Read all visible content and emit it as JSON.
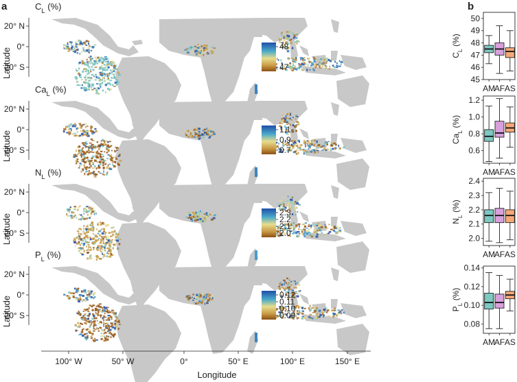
{
  "figure": {
    "panel_a_label": "a",
    "panel_b_label": "b",
    "map_ylabel": "Latitude",
    "map_xlabel": "Longitude",
    "lat_ticks": [
      "20° N",
      "0°",
      "20° S"
    ],
    "lon_ticks": [
      "100° W",
      "50° W",
      "0°",
      "50° E",
      "100° E",
      "150° E"
    ]
  },
  "colors": {
    "land": "#c8c8c8",
    "low": "#a86a28",
    "mid": "#d8c46a",
    "high": "#2c5fb0",
    "box_AM": "#7ec8c2",
    "box_AF": "#d8a0dc",
    "box_AS": "#f5a878"
  },
  "map_panels": [
    {
      "id": "C",
      "title_main": "C",
      "title_sub": "L",
      "title_unit": " (%)",
      "legend_ticks": [
        "48",
        "47"
      ]
    },
    {
      "id": "Ca",
      "title_main": "Ca",
      "title_sub": "L",
      "title_unit": " (%)",
      "legend_ticks": [
        "1.1",
        "0.9",
        "0.7"
      ]
    },
    {
      "id": "N",
      "title_main": "N",
      "title_sub": "L",
      "title_unit": " (%)",
      "legend_ticks": [
        "2.3",
        "2.2",
        "2.1",
        "2.0"
      ]
    },
    {
      "id": "P",
      "title_main": "P",
      "title_sub": "L",
      "title_unit": " (%)",
      "legend_ticks": [
        "0.12",
        "0.11",
        "0.10",
        "0.09"
      ]
    }
  ],
  "chart_data": [
    {
      "type": "box",
      "ylabel_main": "C",
      "ylabel_sub": "L",
      "ylabel_unit": " (%)",
      "ylim": [
        45,
        50.5
      ],
      "yticks": [
        "45",
        "46",
        "47",
        "48",
        "49",
        "50"
      ],
      "categories": [
        "AM",
        "AF",
        "AS"
      ],
      "boxes": [
        {
          "name": "AM",
          "min": 46.3,
          "q1": 47.2,
          "median": 47.5,
          "q3": 47.8,
          "max": 48.6
        },
        {
          "name": "AF",
          "min": 45.5,
          "q1": 47.0,
          "median": 47.5,
          "q3": 48.0,
          "max": 49.4
        },
        {
          "name": "AS",
          "min": 45.7,
          "q1": 46.8,
          "median": 47.3,
          "q3": 47.6,
          "max": 49.0
        }
      ]
    },
    {
      "type": "box",
      "ylabel_main": "Ca",
      "ylabel_sub": "L",
      "ylabel_unit": " (%)",
      "ylim": [
        0.45,
        1.25
      ],
      "yticks": [
        "0.6",
        "0.8",
        "1.0",
        "1.2"
      ],
      "categories": [
        "AM",
        "AF",
        "AS"
      ],
      "boxes": [
        {
          "name": "AM",
          "min": 0.47,
          "q1": 0.71,
          "median": 0.77,
          "q3": 0.85,
          "max": 1.13
        },
        {
          "name": "AF",
          "min": 0.51,
          "q1": 0.76,
          "median": 0.81,
          "q3": 0.95,
          "max": 1.22
        },
        {
          "name": "AS",
          "min": 0.64,
          "q1": 0.82,
          "median": 0.87,
          "q3": 0.93,
          "max": 1.12
        }
      ]
    },
    {
      "type": "box",
      "ylabel_main": "N",
      "ylabel_sub": "L",
      "ylabel_unit": " (%)",
      "ylim": [
        1.95,
        2.42
      ],
      "yticks": [
        "2.0",
        "2.1",
        "2.2",
        "2.3",
        "2.4"
      ],
      "categories": [
        "AM",
        "AF",
        "AS"
      ],
      "boxes": [
        {
          "name": "AM",
          "min": 1.98,
          "q1": 2.11,
          "median": 2.16,
          "q3": 2.2,
          "max": 2.32
        },
        {
          "name": "AF",
          "min": 1.97,
          "q1": 2.11,
          "median": 2.16,
          "q3": 2.21,
          "max": 2.35
        },
        {
          "name": "AS",
          "min": 1.99,
          "q1": 2.11,
          "median": 2.16,
          "q3": 2.2,
          "max": 2.33
        }
      ]
    },
    {
      "type": "box",
      "ylabel_main": "P",
      "ylabel_sub": "L",
      "ylabel_unit": " (%)",
      "ylim": [
        0.07,
        0.142
      ],
      "yticks": [
        "0.08",
        "0.10",
        "0.12",
        "0.14"
      ],
      "categories": [
        "AM",
        "AF",
        "AS"
      ],
      "boxes": [
        {
          "name": "AM",
          "min": 0.075,
          "q1": 0.096,
          "median": 0.103,
          "q3": 0.113,
          "max": 0.135
        },
        {
          "name": "AF",
          "min": 0.075,
          "q1": 0.097,
          "median": 0.103,
          "q3": 0.112,
          "max": 0.132
        },
        {
          "name": "AS",
          "min": 0.094,
          "q1": 0.107,
          "median": 0.111,
          "q3": 0.115,
          "max": 0.128
        }
      ]
    }
  ]
}
